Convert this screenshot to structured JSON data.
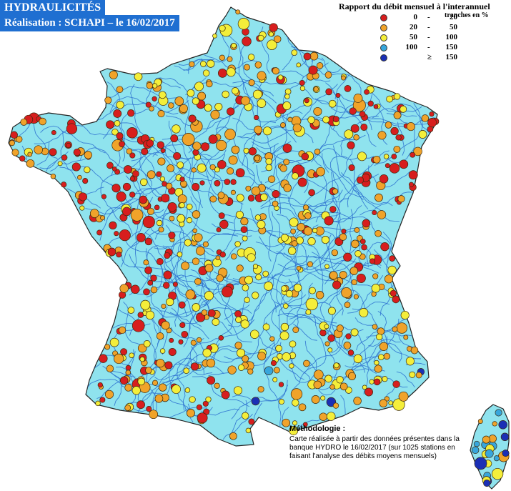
{
  "title": {
    "line1": "HYDRAULICITÉS",
    "line2": "Réalisation : SCHAPI – le 16/02/2017",
    "color": "#1f6fd1"
  },
  "legend": {
    "title": "Rapport du débit mensuel à l'interannuel",
    "subtitle": "tranches en %",
    "entries": [
      {
        "lo": "0",
        "sep": "-",
        "hi": "20",
        "color": "#d71e1e"
      },
      {
        "lo": "20",
        "sep": "-",
        "hi": "50",
        "color": "#f0a32a"
      },
      {
        "lo": "50",
        "sep": "-",
        "hi": "100",
        "color": "#f4ee3a"
      },
      {
        "lo": "100",
        "sep": "-",
        "hi": "150",
        "color": "#37a6dc"
      },
      {
        "lo": "",
        "sep": "≥",
        "hi": "150",
        "color": "#1b2fb5"
      }
    ]
  },
  "methodology": {
    "title": "Méthodologie :",
    "text": "Carte réalisée à partir des données présentes dans la banque HYDRO le 16/02/2017 (sur 1025 stations en faisant l'analyse des débits moyens mensuels)"
  },
  "map_style": {
    "land": "#8fe3ee",
    "river": "#2b6fcf",
    "border": "#222222"
  }
}
